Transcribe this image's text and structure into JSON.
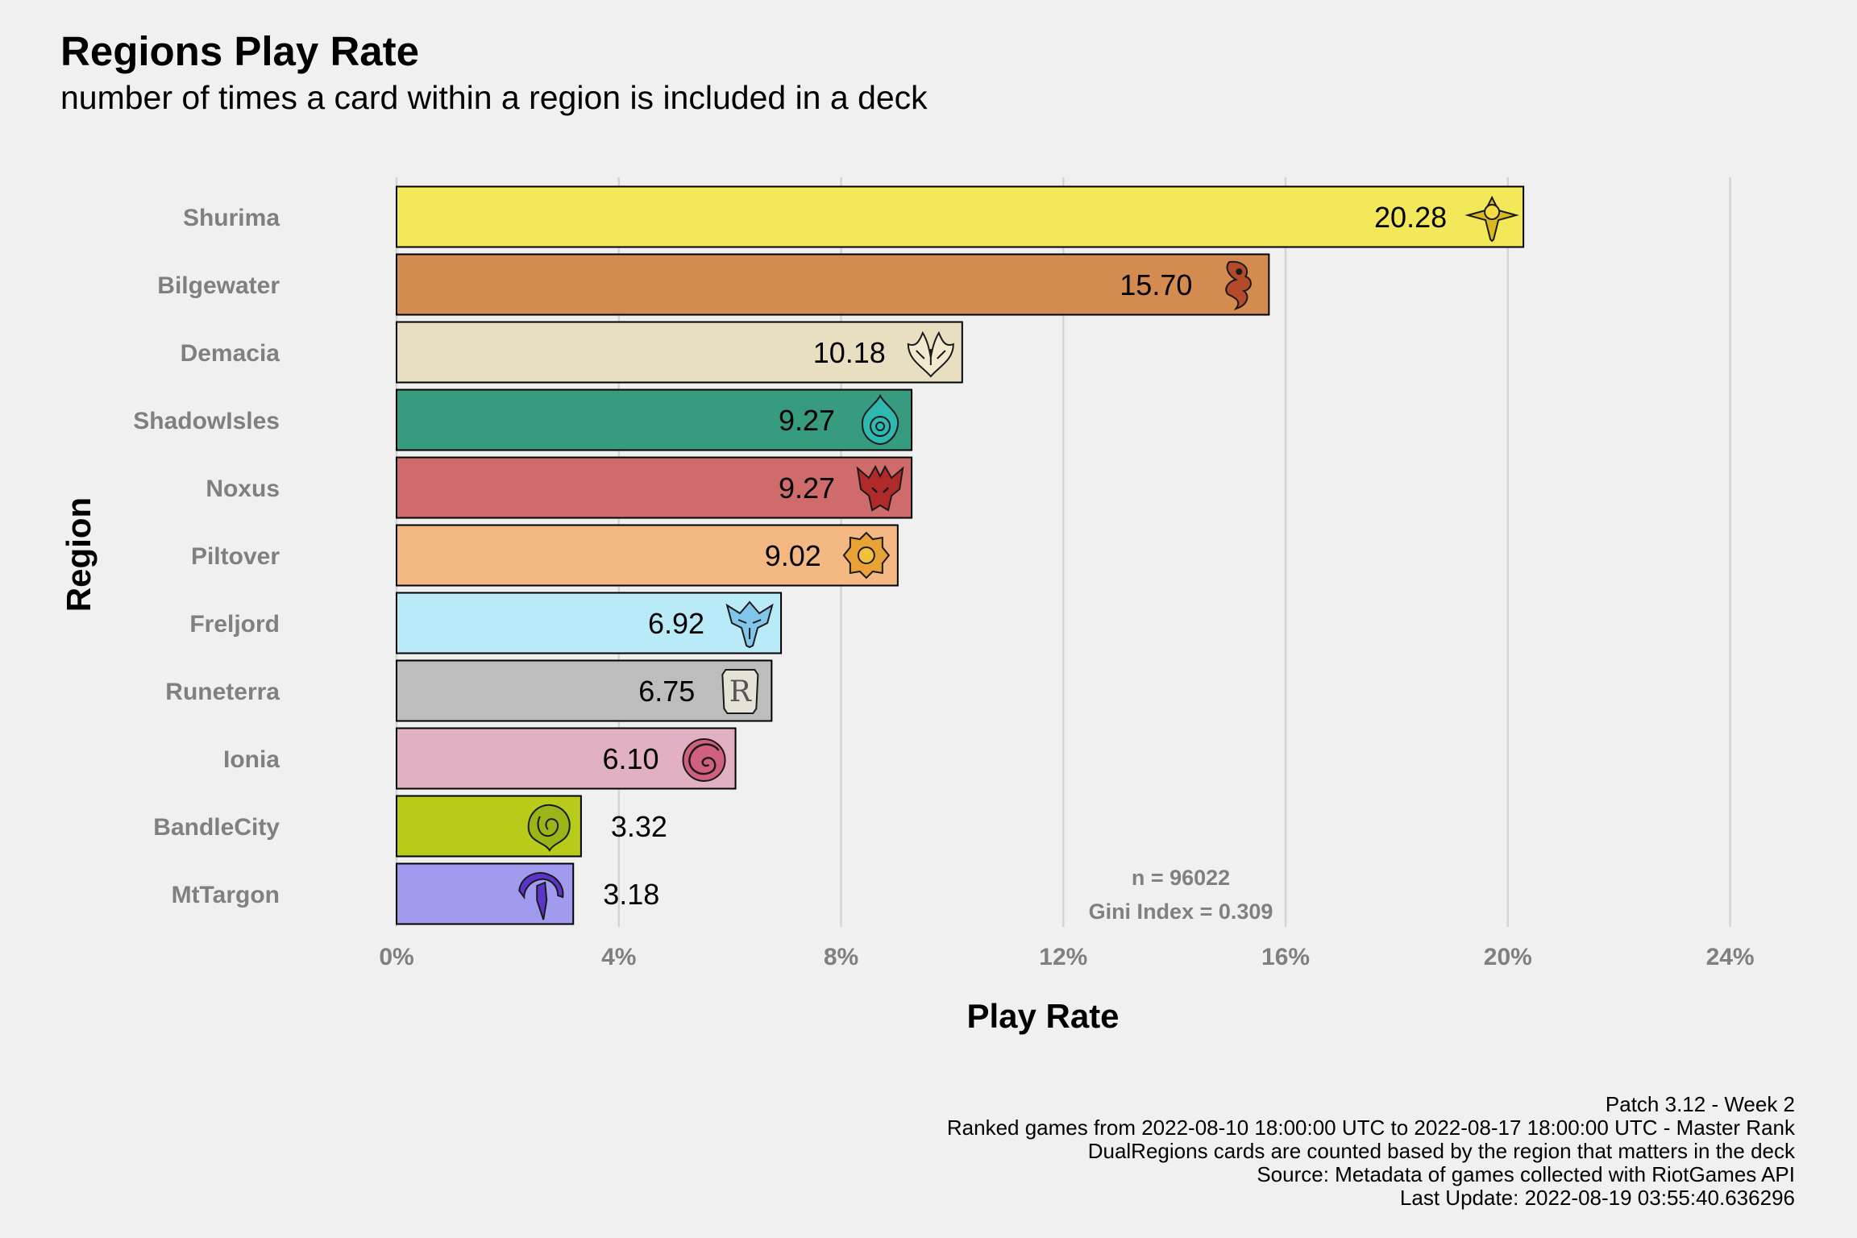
{
  "chart_data": {
    "type": "bar",
    "orientation": "horizontal",
    "title": "Regions Play Rate",
    "subtitle": "number of times a card within a region is included in a deck",
    "xlabel": "Play Rate",
    "ylabel": "Region",
    "xlim": [
      0,
      25.5
    ],
    "x_ticks": [
      0,
      4,
      8,
      12,
      16,
      20,
      24
    ],
    "x_tick_labels": [
      "0%",
      "4%",
      "8%",
      "12%",
      "16%",
      "20%",
      "24%"
    ],
    "grid": "vertical major gridlines",
    "categories": [
      "Shurima",
      "Bilgewater",
      "Demacia",
      "ShadowIsles",
      "Noxus",
      "Piltover",
      "Freljord",
      "Runeterra",
      "Ionia",
      "BandleCity",
      "MtTargon"
    ],
    "values": [
      20.28,
      15.7,
      10.18,
      9.27,
      9.27,
      9.02,
      6.92,
      6.75,
      6.1,
      3.32,
      3.18
    ],
    "value_labels": [
      "20.28",
      "15.70",
      "10.18",
      "9.27",
      "9.27",
      "9.02",
      "6.92",
      "6.75",
      "6.10",
      "3.32",
      "3.18"
    ],
    "colors": [
      "#f2e85a",
      "#d38b4f",
      "#e8dec0",
      "#369b7f",
      "#cf6b6a",
      "#f4b983",
      "#b9eaf7",
      "#bdbdbd",
      "#e1b0c2",
      "#b8cb1a",
      "#a09bee"
    ],
    "icons": [
      "shurima-icon",
      "bilgewater-icon",
      "demacia-icon",
      "shadowisles-icon",
      "noxus-icon",
      "piltover-icon",
      "freljord-icon",
      "runeterra-icon",
      "ionia-icon",
      "bandlecity-icon",
      "mttargon-icon"
    ],
    "icon_colors": [
      "#d9b820",
      "#b54a2a",
      "#f2ead0",
      "#2fb8b0",
      "#b02a2a",
      "#e8a235",
      "#7fc6ea",
      "#e6e2d8",
      "#d0607e",
      "#9ab517",
      "#5a35c8"
    ],
    "annotations": [
      "n = 96022",
      "Gini Index = 0.309"
    ],
    "caption": [
      "Patch 3.12 - Week 2",
      "Ranked games from 2022-08-10 18:00:00 UTC to 2022-08-17 18:00:00 UTC - Master Rank",
      "DualRegions cards are counted based by the region that matters in the deck",
      "Source: Metadata of games collected with RiotGames API",
      "Last Update: 2022-08-19 03:55:40.636296"
    ],
    "legend": "none"
  }
}
